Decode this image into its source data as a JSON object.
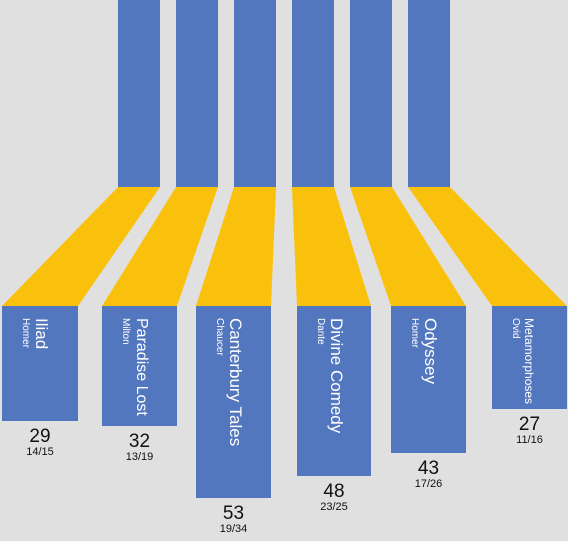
{
  "colors": {
    "background": "#e0e0e0",
    "top_block": "#5377be",
    "connector": "#fac10c",
    "card": "#5377be",
    "card_text": "#ffffff",
    "number_text": "#111111"
  },
  "items": [
    {
      "title": "Iliad",
      "author": "Homer",
      "value": "29",
      "ratio": "14/15"
    },
    {
      "title": "Paradise Lost",
      "author": "Milton",
      "value": "32",
      "ratio": "13/19"
    },
    {
      "title": "Canterbury Tales",
      "author": "Chaucer",
      "value": "53",
      "ratio": "19/34"
    },
    {
      "title": "Divine Comedy",
      "author": "Dante",
      "value": "48",
      "ratio": "23/25"
    },
    {
      "title": "Odyssey",
      "author": "Homer",
      "value": "43",
      "ratio": "17/26"
    },
    {
      "title": "Metamorphoses",
      "author": "Ovid",
      "value": "27",
      "ratio": "11/16"
    }
  ]
}
